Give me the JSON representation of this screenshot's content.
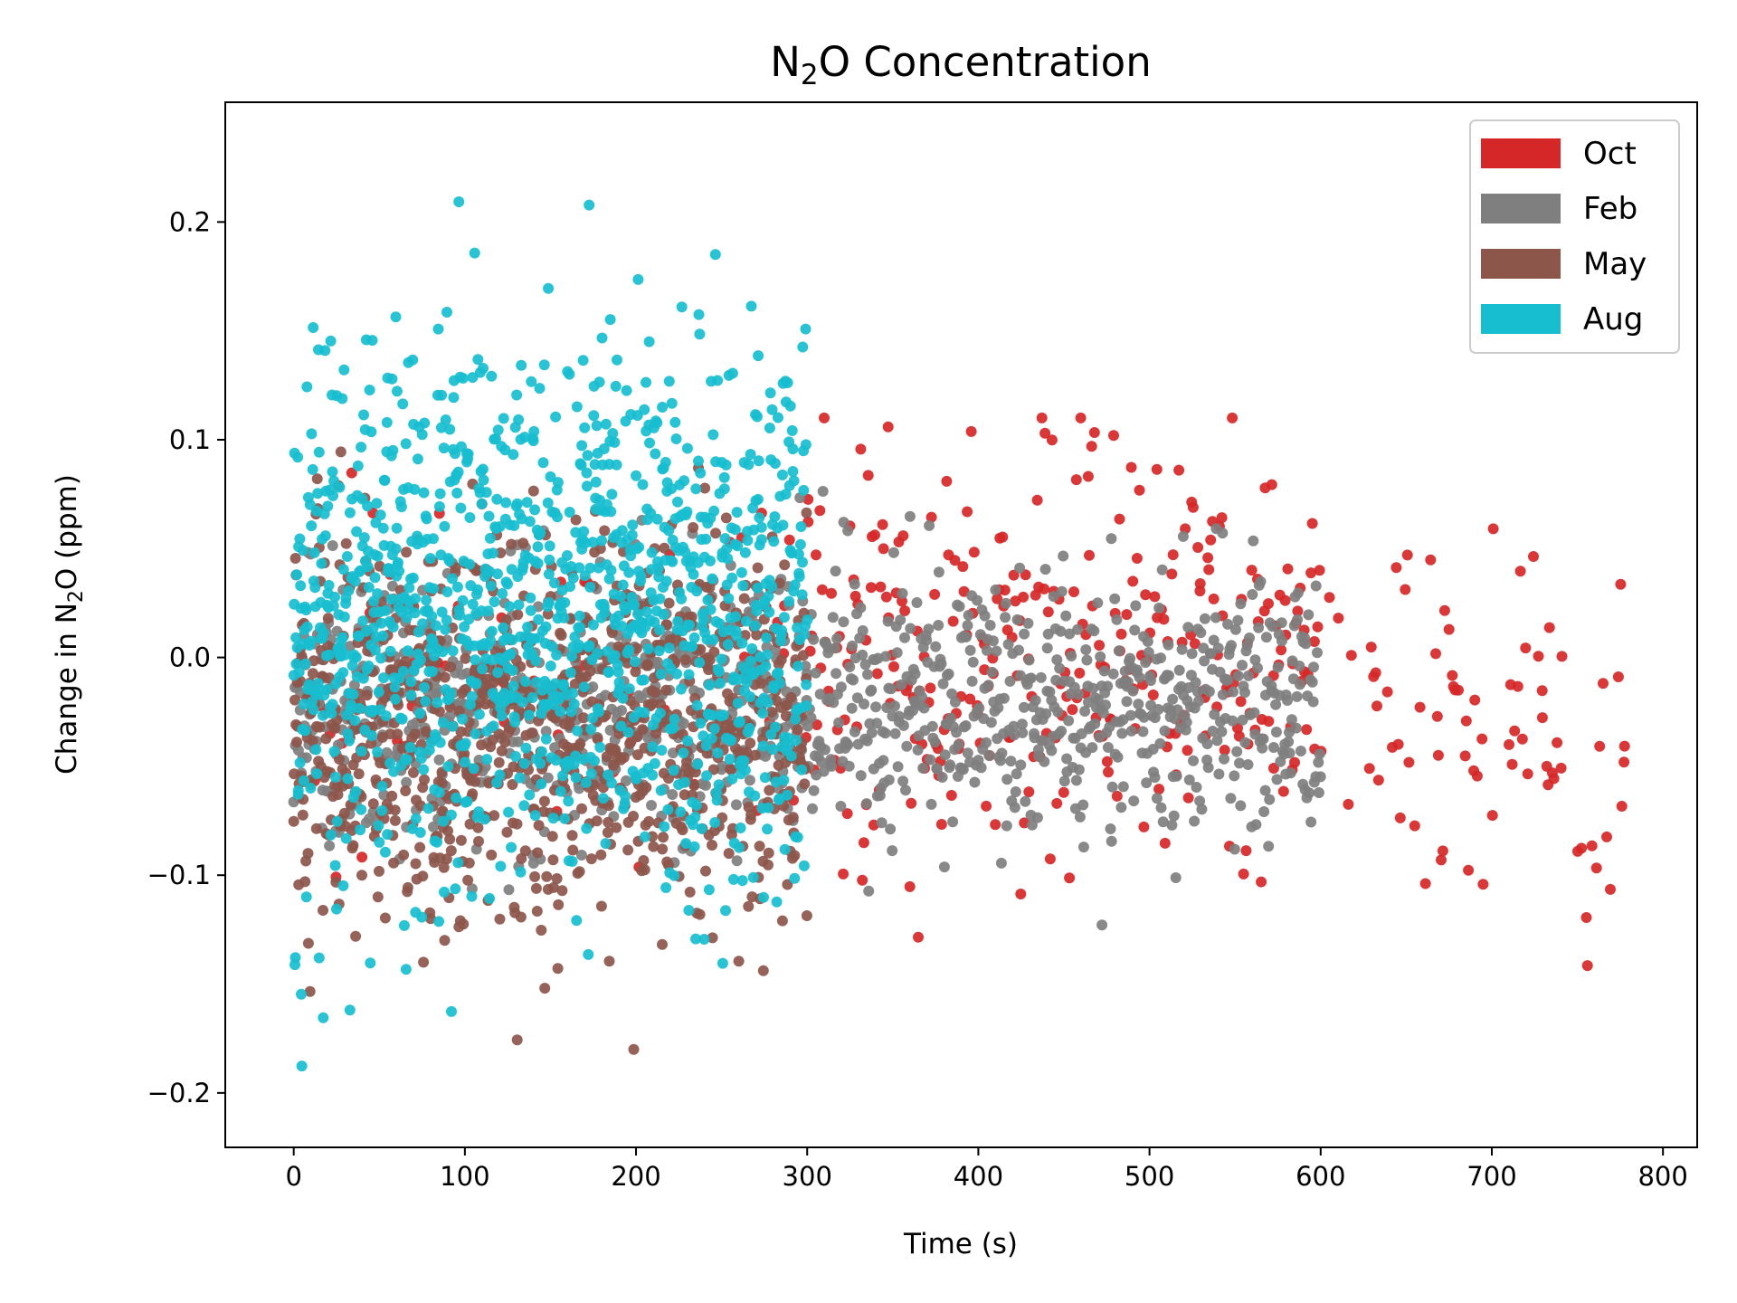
{
  "chart_data": {
    "type": "scatter",
    "title": {
      "main": "N",
      "sub": "2",
      "rest": "O Concentration"
    },
    "xlabel": "Time (s)",
    "ylabel": {
      "main": "Change in N",
      "sub": "2",
      "rest": "O (ppm)"
    },
    "xlim": [
      -40,
      820
    ],
    "ylim": [
      -0.225,
      0.255
    ],
    "x_ticks": [
      0,
      100,
      200,
      300,
      400,
      500,
      600,
      700,
      800
    ],
    "x_tick_labels": [
      "0",
      "100",
      "200",
      "300",
      "400",
      "500",
      "600",
      "700",
      "800"
    ],
    "y_ticks": [
      -0.2,
      -0.1,
      0.0,
      0.1,
      0.2
    ],
    "y_tick_labels": [
      "−0.2",
      "−0.1",
      "0.0",
      "0.1",
      "0.2"
    ],
    "grid": false,
    "legend_position": "top-right",
    "series": [
      {
        "name": "Oct",
        "color": "#d62728",
        "x_range": [
          0,
          780
        ],
        "sample_interval": 1,
        "dense_range": [
          300,
          600
        ],
        "mean_in_dense_range": 0.0,
        "std_in_dense_range": 0.045,
        "tail_range": [
          600,
          780
        ],
        "tail_mean_start": -0.01,
        "tail_mean_end": -0.05,
        "y_min_observed": -0.157,
        "y_max_observed": 0.11
      },
      {
        "name": "Feb",
        "color": "#7f7f7f",
        "x_range": [
          0,
          600
        ],
        "sample_interval": 0.5,
        "mean": -0.02,
        "std": 0.03,
        "y_min_observed": -0.13,
        "y_max_observed": 0.08
      },
      {
        "name": "May",
        "color": "#8c564b",
        "x_range": [
          0,
          300
        ],
        "sample_interval": 0.33,
        "mean": -0.03,
        "std": 0.045,
        "y_min_observed": -0.18,
        "y_max_observed": 0.16
      },
      {
        "name": "Aug",
        "color": "#17becf",
        "x_range": [
          0,
          300
        ],
        "sample_interval": 0.25,
        "mean": 0.02,
        "std": 0.06,
        "y_min_observed": -0.203,
        "y_max_observed": 0.234
      }
    ]
  }
}
